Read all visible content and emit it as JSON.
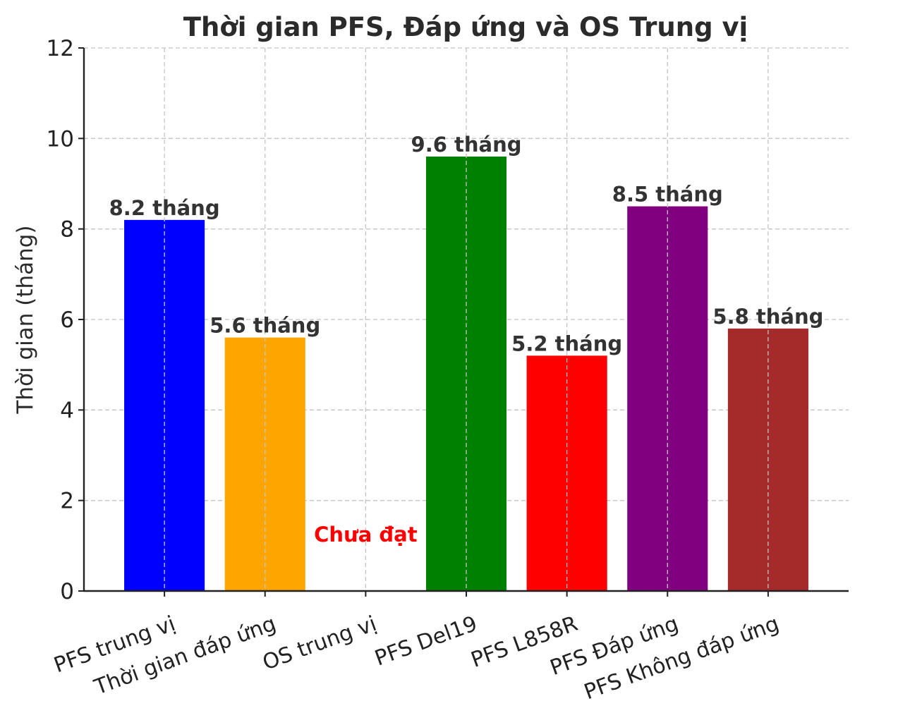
{
  "chart_data": {
    "type": "bar",
    "title": "Thời gian PFS, Đáp ứng và OS Trung vị",
    "xlabel": "",
    "ylabel": "Thời gian (tháng)",
    "ylim": [
      0,
      12
    ],
    "yticks": [
      0,
      2,
      4,
      6,
      8,
      10,
      12
    ],
    "ytick_labels": [
      "0",
      "2",
      "4",
      "6",
      "8",
      "10",
      "12"
    ],
    "grid": true,
    "categories": [
      "PFS trung vị",
      "Thời gian đáp ứng",
      "OS trung vị",
      "PFS Del19",
      "PFS L858R",
      "PFS Đáp ứng",
      "PFS Không đáp ứng"
    ],
    "values": [
      8.2,
      5.6,
      0,
      9.6,
      5.2,
      8.5,
      5.8
    ],
    "colors": [
      "#0000ff",
      "#ffa500",
      "#ffffff",
      "#008000",
      "#ff0000",
      "#800080",
      "#a52a2a"
    ],
    "data_labels": [
      "8.2 tháng",
      "5.6 tháng",
      "",
      "9.6 tháng",
      "5.2 tháng",
      "8.5 tháng",
      "5.8 tháng"
    ],
    "annotations": [
      {
        "category_index": 2,
        "text": "Chưa đạt",
        "color": "#ff0000",
        "y": 1.25
      }
    ]
  }
}
